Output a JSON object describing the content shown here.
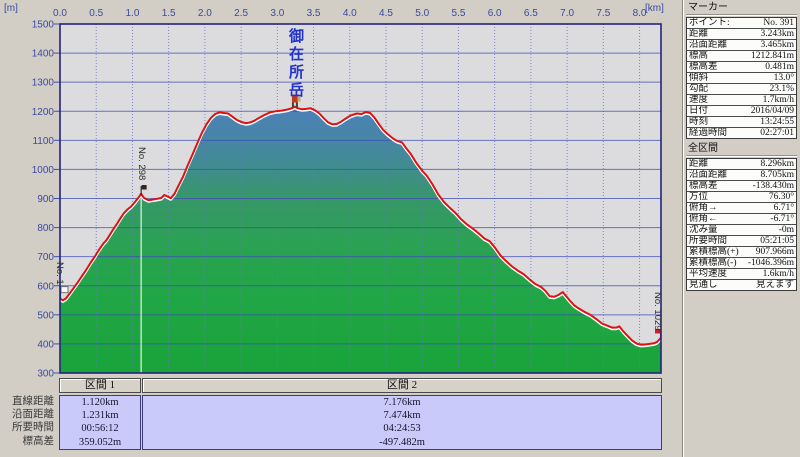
{
  "chart_data": {
    "type": "area",
    "title_annotation": "御在所岳",
    "xlabel_unit": "[km]",
    "ylabel_unit": "[m]",
    "x_range": [
      0,
      8.296
    ],
    "x_tick_step": 0.5,
    "x_tick_max": 8.0,
    "y_range": [
      300,
      1500
    ],
    "y_tick_step": 100,
    "grid": true,
    "line_color": "#dd1111",
    "plot_bg": "#dcdcdf",
    "grid_color": "#3d4db6",
    "minor_grid_color": "#6a74cc",
    "border_color": "#23237e",
    "fill_gradient": [
      [
        0,
        "#5a7ec2"
      ],
      [
        0.24,
        "#4c80b8"
      ],
      [
        0.38,
        "#43899a"
      ],
      [
        0.5,
        "#379669"
      ],
      [
        0.62,
        "#2ba154"
      ],
      [
        0.78,
        "#21a646"
      ],
      [
        1,
        "#19a43a"
      ]
    ],
    "section_boundary_km": 1.12,
    "profile": [
      [
        0,
        552
      ],
      [
        0.04,
        546
      ],
      [
        0.08,
        552
      ],
      [
        0.13,
        568
      ],
      [
        0.18,
        585
      ],
      [
        0.24,
        606
      ],
      [
        0.3,
        628
      ],
      [
        0.36,
        650
      ],
      [
        0.42,
        674
      ],
      [
        0.48,
        696
      ],
      [
        0.54,
        720
      ],
      [
        0.6,
        742
      ],
      [
        0.64,
        752
      ],
      [
        0.68,
        768
      ],
      [
        0.73,
        788
      ],
      [
        0.78,
        806
      ],
      [
        0.83,
        826
      ],
      [
        0.88,
        845
      ],
      [
        0.93,
        858
      ],
      [
        0.98,
        868
      ],
      [
        1.03,
        882
      ],
      [
        1.08,
        898
      ],
      [
        1.12,
        912
      ],
      [
        1.16,
        898
      ],
      [
        1.22,
        890
      ],
      [
        1.28,
        892
      ],
      [
        1.34,
        895
      ],
      [
        1.4,
        898
      ],
      [
        1.44,
        908
      ],
      [
        1.48,
        903
      ],
      [
        1.53,
        897
      ],
      [
        1.58,
        912
      ],
      [
        1.64,
        942
      ],
      [
        1.7,
        972
      ],
      [
        1.76,
        1008
      ],
      [
        1.83,
        1048
      ],
      [
        1.9,
        1088
      ],
      [
        1.96,
        1122
      ],
      [
        2.02,
        1150
      ],
      [
        2.08,
        1172
      ],
      [
        2.14,
        1186
      ],
      [
        2.2,
        1192
      ],
      [
        2.26,
        1190
      ],
      [
        2.32,
        1188
      ],
      [
        2.38,
        1177
      ],
      [
        2.44,
        1166
      ],
      [
        2.5,
        1159
      ],
      [
        2.56,
        1155
      ],
      [
        2.62,
        1157
      ],
      [
        2.68,
        1163
      ],
      [
        2.74,
        1172
      ],
      [
        2.82,
        1183
      ],
      [
        2.9,
        1192
      ],
      [
        2.98,
        1196
      ],
      [
        3.06,
        1198
      ],
      [
        3.14,
        1202
      ],
      [
        3.2,
        1206
      ],
      [
        3.243,
        1212
      ],
      [
        3.28,
        1206
      ],
      [
        3.34,
        1203
      ],
      [
        3.4,
        1204
      ],
      [
        3.46,
        1206
      ],
      [
        3.52,
        1199
      ],
      [
        3.58,
        1188
      ],
      [
        3.64,
        1172
      ],
      [
        3.7,
        1158
      ],
      [
        3.76,
        1151
      ],
      [
        3.82,
        1152
      ],
      [
        3.88,
        1160
      ],
      [
        3.95,
        1172
      ],
      [
        4.02,
        1182
      ],
      [
        4.1,
        1188
      ],
      [
        4.16,
        1186
      ],
      [
        4.22,
        1193
      ],
      [
        4.28,
        1190
      ],
      [
        4.34,
        1174
      ],
      [
        4.4,
        1152
      ],
      [
        4.46,
        1132
      ],
      [
        4.52,
        1118
      ],
      [
        4.6,
        1102
      ],
      [
        4.66,
        1093
      ],
      [
        4.72,
        1089
      ],
      [
        4.78,
        1068
      ],
      [
        4.84,
        1050
      ],
      [
        4.92,
        1018
      ],
      [
        5.0,
        991
      ],
      [
        5.06,
        975
      ],
      [
        5.14,
        945
      ],
      [
        5.22,
        910
      ],
      [
        5.3,
        884
      ],
      [
        5.38,
        864
      ],
      [
        5.46,
        846
      ],
      [
        5.54,
        824
      ],
      [
        5.62,
        806
      ],
      [
        5.7,
        792
      ],
      [
        5.78,
        776
      ],
      [
        5.86,
        758
      ],
      [
        5.93,
        749
      ],
      [
        6.0,
        728
      ],
      [
        6.08,
        700
      ],
      [
        6.16,
        680
      ],
      [
        6.24,
        662
      ],
      [
        6.32,
        648
      ],
      [
        6.4,
        636
      ],
      [
        6.48,
        618
      ],
      [
        6.56,
        602
      ],
      [
        6.64,
        592
      ],
      [
        6.7,
        578
      ],
      [
        6.76,
        560
      ],
      [
        6.82,
        558
      ],
      [
        6.88,
        564
      ],
      [
        6.94,
        574
      ],
      [
        6.98,
        562
      ],
      [
        7.04,
        544
      ],
      [
        7.1,
        528
      ],
      [
        7.16,
        518
      ],
      [
        7.24,
        506
      ],
      [
        7.32,
        496
      ],
      [
        7.4,
        482
      ],
      [
        7.48,
        466
      ],
      [
        7.56,
        458
      ],
      [
        7.62,
        452
      ],
      [
        7.68,
        452
      ],
      [
        7.72,
        456
      ],
      [
        7.78,
        438
      ],
      [
        7.84,
        422
      ],
      [
        7.9,
        407
      ],
      [
        7.96,
        397
      ],
      [
        8.02,
        393
      ],
      [
        8.08,
        394
      ],
      [
        8.14,
        396
      ],
      [
        8.2,
        398
      ],
      [
        8.24,
        402
      ],
      [
        8.27,
        410
      ],
      [
        8.296,
        417
      ]
    ],
    "markers": [
      {
        "type": "start-flag",
        "km": 0,
        "m": 552,
        "label": "No. 1"
      },
      {
        "type": "waypoint-flag",
        "km": 1.12,
        "m": 912,
        "label": "No. 298"
      },
      {
        "type": "peak-person",
        "km": 3.243,
        "m": 1212.8,
        "label": "御在所岳"
      },
      {
        "type": "end-flag",
        "km": 8.296,
        "m": 417,
        "label": "No. 1029"
      }
    ]
  },
  "sections": {
    "headers": [
      "区間 1",
      "区間 2"
    ],
    "rows": [
      {
        "label": "直線距離",
        "s1": "1.120km",
        "s2": "7.176km"
      },
      {
        "label": "沿面距離",
        "s1": "1.231km",
        "s2": "7.474km"
      },
      {
        "label": "所要時間",
        "s1": "00:56:12",
        "s2": "04:24:53"
      },
      {
        "label": "標高差",
        "s1": "359.052m",
        "s2": "-497.482m"
      }
    ]
  },
  "panel": {
    "marker": {
      "title": "マーカー",
      "rows": [
        {
          "label": "ポイント:",
          "value": "No. 391"
        },
        {
          "label": "距離",
          "value": "3.243km"
        },
        {
          "label": "沿面距離",
          "value": "3.465km"
        },
        {
          "label": "標高",
          "value": "1212.841m"
        },
        {
          "label": "標高差",
          "value": "0.481m"
        },
        {
          "label": "傾斜",
          "value": "13.0°"
        },
        {
          "label": "勾配",
          "value": "23.1%"
        },
        {
          "label": "速度",
          "value": "1.7km/h"
        },
        {
          "label": "日付",
          "value": "2016/04/09"
        },
        {
          "label": "時刻",
          "value": "13:24:55"
        },
        {
          "label": "経過時間",
          "value": "02:27:01"
        }
      ]
    },
    "whole": {
      "title": "全区間",
      "rows": [
        {
          "label": "距離",
          "value": "8.296km"
        },
        {
          "label": "沿面距離",
          "value": "8.705km"
        },
        {
          "label": "標高差",
          "value": "-138.430m"
        },
        {
          "label": "方位",
          "value": "76.30°"
        },
        {
          "label": "俯角→",
          "value": "6.71°"
        },
        {
          "label": "俯角←",
          "value": "-6.71°"
        },
        {
          "label": "沈み量",
          "value": "-0m"
        },
        {
          "label": "所要時間",
          "value": "05:21:05"
        },
        {
          "label": "累積標高(+)",
          "value": "907.966m"
        },
        {
          "label": "累積標高(-)",
          "value": "-1046.396m"
        },
        {
          "label": "平均速度",
          "value": "1.6km/h"
        },
        {
          "label": "見通し",
          "value": "見えます"
        }
      ]
    }
  }
}
